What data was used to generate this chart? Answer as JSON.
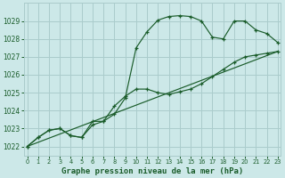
{
  "title": "Graphe pression niveau de la mer (hPa)",
  "bg_color": "#cce8e8",
  "grid_color": "#aacccc",
  "line_color": "#1a5c2a",
  "tick_color": "#1a5c2a",
  "ylim": [
    1021.5,
    1030.0
  ],
  "xlim": [
    -0.3,
    23.3
  ],
  "yticks": [
    1022,
    1023,
    1024,
    1025,
    1026,
    1027,
    1028,
    1029
  ],
  "xticks": [
    0,
    1,
    2,
    3,
    4,
    5,
    6,
    7,
    8,
    9,
    10,
    11,
    12,
    13,
    14,
    15,
    16,
    17,
    18,
    19,
    20,
    21,
    22,
    23
  ],
  "series_main": {
    "x": [
      0,
      1,
      2,
      3,
      4,
      5,
      6,
      7,
      8,
      9,
      10,
      11,
      12,
      13,
      14,
      15,
      16,
      17,
      18,
      19,
      20,
      21,
      22,
      23
    ],
    "y": [
      1022.0,
      1022.5,
      1022.9,
      1023.0,
      1022.6,
      1022.5,
      1023.2,
      1023.4,
      1023.8,
      1024.7,
      1027.5,
      1028.4,
      1029.05,
      1029.25,
      1029.3,
      1029.25,
      1029.0,
      1028.1,
      1028.0,
      1029.0,
      1029.0,
      1028.5,
      1028.3,
      1027.8
    ]
  },
  "series_zigzag": {
    "x": [
      0,
      1,
      2,
      3,
      4,
      5,
      6,
      7,
      8,
      9,
      10,
      11,
      12,
      13,
      14,
      15,
      16,
      17,
      18,
      19,
      20,
      21,
      22,
      23
    ],
    "y": [
      1022.0,
      1022.5,
      1022.9,
      1023.0,
      1022.6,
      1022.5,
      1023.4,
      1023.4,
      1024.25,
      1024.8,
      1025.2,
      1025.2,
      1025.0,
      1024.9,
      1025.05,
      1025.2,
      1025.5,
      1025.9,
      1026.3,
      1026.7,
      1027.0,
      1027.1,
      1027.2,
      1027.3
    ]
  },
  "series_straight": {
    "x": [
      0,
      23
    ],
    "y": [
      1022.0,
      1027.3
    ]
  }
}
